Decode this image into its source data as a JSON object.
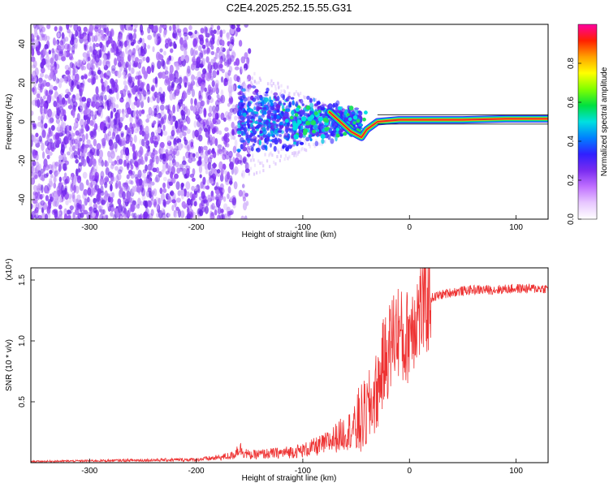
{
  "title": "C2E4.2025.252.15.55.G31",
  "colors": {
    "snr_line": "#ee3333",
    "spectrogram_low": "#7a2cf0",
    "ridge_band": "#e8262a",
    "axis": "#000000"
  },
  "chart_data": [
    {
      "type": "heatmap",
      "name": "spectrogram",
      "xlabel": "Height of straight line (km)",
      "ylabel": "Frequency (Hz)",
      "xlim": [
        -355,
        130
      ],
      "ylim": [
        -50,
        50
      ],
      "x_ticks": [
        -300,
        -200,
        -100,
        0,
        100
      ],
      "y_ticks": [
        -40,
        -20,
        0,
        20,
        40
      ],
      "grid": false,
      "colorbar": {
        "label": "Normalized spectral amplitude",
        "range": [
          0,
          1
        ],
        "ticks": [
          "0.0",
          "0.2",
          "0.4",
          "0.6",
          "0.8"
        ],
        "colors": [
          "#ffffff",
          "#e8c8ff",
          "#c070ff",
          "#7a2cf0",
          "#3020ff",
          "#0080ff",
          "#00e0e0",
          "#00e040",
          "#80ff00",
          "#ffff00",
          "#ffa000",
          "#ff2000",
          "#ff00a0"
        ]
      },
      "ridge": {
        "description": "carrier tone",
        "points": [
          {
            "x": -75,
            "y": 5
          },
          {
            "x": -65,
            "y": 0
          },
          {
            "x": -55,
            "y": -5
          },
          {
            "x": -45,
            "y": -8
          },
          {
            "x": -40,
            "y": -4
          },
          {
            "x": -30,
            "y": 0
          },
          {
            "x": -10,
            "y": 1
          },
          {
            "x": 0,
            "y": 1
          },
          {
            "x": 50,
            "y": 1
          },
          {
            "x": 90,
            "y": 1.5
          },
          {
            "x": 130,
            "y": 1.5
          }
        ]
      }
    },
    {
      "type": "line",
      "name": "snr",
      "xlabel": "Height of straight line (km)",
      "ylabel": "SNR (10 * v/v)",
      "y_multiplier": "(x10⁴)",
      "xlim": [
        -355,
        130
      ],
      "ylim": [
        0,
        1.6
      ],
      "x_ticks": [
        -300,
        -200,
        -100,
        0,
        100
      ],
      "y_ticks": [
        "0.5",
        "1.0",
        "1.5"
      ],
      "grid": false,
      "series": [
        {
          "x": [
            -355,
            -300,
            -250,
            -200,
            -180,
            -165,
            -160,
            -150,
            -140,
            -120,
            -100,
            -80,
            -60,
            -50,
            -40,
            -30,
            -25,
            -20,
            -15,
            -10,
            -5,
            0,
            5,
            10,
            15,
            20,
            30,
            40,
            60,
            80,
            100,
            120,
            130
          ],
          "y": [
            0.01,
            0.015,
            0.02,
            0.025,
            0.04,
            0.06,
            0.12,
            0.06,
            0.07,
            0.08,
            0.1,
            0.15,
            0.25,
            0.3,
            0.4,
            0.6,
            0.8,
            0.9,
            1.05,
            1.1,
            0.95,
            1.1,
            1.2,
            1.25,
            1.3,
            1.35,
            1.38,
            1.4,
            1.42,
            1.42,
            1.43,
            1.43,
            1.43
          ]
        }
      ]
    }
  ]
}
